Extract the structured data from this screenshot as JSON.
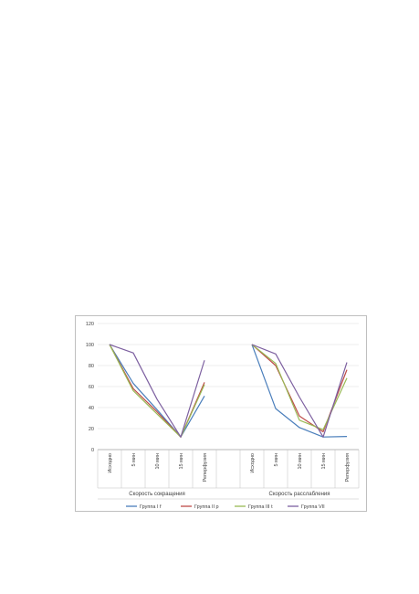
{
  "chart_data": {
    "type": "line",
    "title": "",
    "xlabel": "",
    "ylabel": "",
    "ylim": [
      0,
      120
    ],
    "yticks": [
      "0",
      "20",
      "40",
      "60",
      "80",
      "100",
      "120"
    ],
    "grid": true,
    "legend_position": "bottom",
    "groups": [
      {
        "label": "Скорость сокращения",
        "categories": [
          "Исходно",
          "5 мин",
          "10 мин",
          "15 мин",
          "Реперфузия"
        ]
      },
      {
        "label": "Скорость расслабления",
        "categories": [
          "Исходно",
          "5 мин",
          "10 мин",
          "15 мин",
          "Реперфузия"
        ]
      }
    ],
    "series": [
      {
        "name": "Группа I f",
        "color": "#4a7ebb",
        "values": [
          [
            100,
            63,
            38,
            12,
            51
          ],
          [
            100,
            39,
            21,
            12,
            12.5
          ]
        ]
      },
      {
        "name": "Группа II p",
        "color": "#be4b48",
        "values": [
          [
            100,
            58,
            36,
            12,
            64
          ],
          [
            100,
            80,
            32,
            17,
            76
          ]
        ]
      },
      {
        "name": "Группа III t",
        "color": "#98b954",
        "values": [
          [
            100,
            56,
            34,
            12,
            62
          ],
          [
            100,
            82,
            28,
            19,
            68
          ]
        ]
      },
      {
        "name": "Группа VII",
        "color": "#7d60a0",
        "values": [
          [
            100,
            92,
            48,
            12,
            85
          ],
          [
            100,
            91,
            50,
            12,
            83
          ]
        ]
      }
    ]
  }
}
